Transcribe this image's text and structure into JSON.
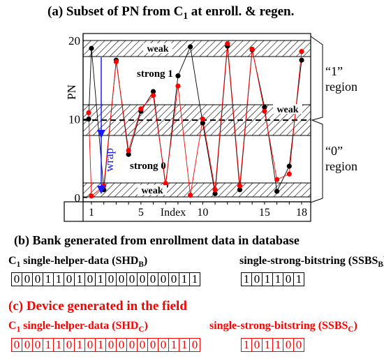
{
  "chart_data": {
    "type": "line",
    "title": "(a) Subset of PN from C",
    "title_sub": "1",
    "title_rest": " at enroll. & regen.",
    "ylabel": "PN",
    "xlabel": "Index",
    "x_ticks": [
      "1",
      "5",
      "10",
      "15",
      "18"
    ],
    "y_ticks": [
      "0",
      "10",
      "20"
    ],
    "ylim": [
      0,
      20
    ],
    "xlim": [
      0,
      19
    ],
    "region_labels": {
      "weak_top": "weak",
      "weak_mid": "weak",
      "weak_bottom": "weak",
      "strong_1": "strong 1",
      "strong_0": "strong 0",
      "wrap": "wrap",
      "region_1": [
        "“1”",
        "region"
      ],
      "region_0": [
        "“0”",
        "region"
      ]
    },
    "series": [
      {
        "color": "#000000",
        "x": [
          0,
          1,
          2,
          3,
          4,
          5,
          6,
          7,
          8,
          9,
          10,
          11,
          12,
          13,
          14,
          15,
          16,
          17,
          18
        ],
        "values": [
          10.0,
          19.0,
          1.0,
          17.5,
          5.5,
          11.0,
          13.5,
          1.5,
          15.5,
          19.2,
          9.5,
          0.5,
          19.3,
          1.0,
          18.8,
          11.5,
          0.8,
          4.0,
          17.5
        ]
      },
      {
        "color": "#ff0000",
        "x": [
          0,
          1,
          2,
          3,
          4,
          5,
          6,
          7,
          8,
          9,
          10,
          11,
          12,
          13,
          14,
          15,
          16,
          17,
          18
        ],
        "values": [
          10.8,
          0.2,
          1.5,
          17.3,
          6.0,
          11.3,
          13.0,
          1.8,
          14.2,
          0.3,
          10.0,
          1.0,
          19.6,
          1.5,
          18.9,
          11.0,
          2.3,
          3.0,
          18.6
        ]
      }
    ],
    "panels": {
      "b_title": "(b) Bank generated from enrollment data in database",
      "b_shd_label_pre": "C",
      "b_shd_label_sub": "1",
      "b_shd_label_mid": " single-helper-data (SHD",
      "b_shd_label_subB": "B",
      "b_shd_label_end": ")",
      "b_ssbs_label_pre": "single-strong-bitstring (SSBS",
      "b_ssbs_label_sub": "B",
      "b_ssbs_label_end": ")",
      "b_shd_bits": [
        "0",
        "0",
        "0",
        "1",
        "1",
        "0",
        "1",
        "0",
        "1",
        "0",
        "0",
        "0",
        "0",
        "0",
        "0",
        "0",
        "1",
        "1"
      ],
      "b_ssbs_bits": [
        "1",
        "0",
        "1",
        "1",
        "0",
        "1"
      ],
      "c_title": "(c) Device generated in the field",
      "c_shd_label_pre": "C",
      "c_shd_label_sub": "1",
      "c_shd_label_mid": " single-helper-data (SHD",
      "c_shd_label_subC": "C",
      "c_shd_label_end": ")",
      "c_ssbs_label_pre": "single-strong-bitstring (SSBS",
      "c_ssbs_label_sub": "C",
      "c_ssbs_label_end": ")",
      "c_shd_bits": [
        "0",
        "0",
        "0",
        "1",
        "1",
        "0",
        "1",
        "0",
        "1",
        "0",
        "0",
        "0",
        "0",
        "0",
        "0",
        "1",
        "1",
        "0"
      ],
      "c_ssbs_bits": [
        "1",
        "0",
        "1",
        "1",
        "0",
        "0"
      ]
    }
  }
}
